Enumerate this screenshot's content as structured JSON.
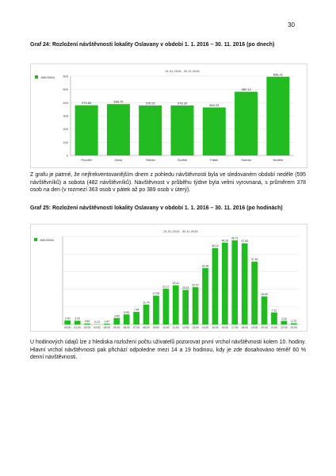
{
  "page": {
    "number": "30"
  },
  "section1": {
    "caption": "Graf 24: Rozložení návštěvnosti lokality Oslavany v období 1. 1. 2016 – 30. 11. 2016 (po dnech)",
    "paragraph": "Z grafu je patrné, že nejfrekventovanějším dnem z pohledu návštěvnosti byla ve sledovaném období neděle (595 návštěvníků) a sobota (482 návštěvníků). Návštěvnost v průběhu týdne byla velmi vyrovnaná, s průměrem 378 osob na den (v rozmezí 363 osob v pátek až po 389 osob v úterý)."
  },
  "section2": {
    "caption": "Graf 25: Rozložení návštěvnosti lokality Oslavany v období 1. 1. 2016 – 30. 11. 2016 (po hodinách)",
    "paragraph": "U hodinových údajů lze z hlediska rozložení počtu uživatelů pozorovat první vrchol návštěvnosti kolem 10. hodiny. Hlavní vrchol návštěvnosti pak přichází odpoledne mezi 14 a 19 hodinou, kdy je zde dosahováno téměř 60 % denní návštěvnosti."
  },
  "chart_data": [
    {
      "type": "bar",
      "subtitle": "01.01.2016 - 30.11.2016",
      "series": [
        {
          "name": "JMK00004",
          "color": "#22bb22",
          "values": [
            379.84,
            388.75,
            378.51,
            378.26,
            363.23,
            482.14,
            595.41
          ],
          "value_labels": [
            "379.84",
            "388.75",
            "378.51",
            "378.26",
            "363.23",
            "482.14",
            "595.41"
          ]
        }
      ],
      "categories": [
        "Pondělí",
        "Úterý",
        "Středa",
        "Čtvrtek",
        "Pátek",
        "Sobota",
        "Neděle"
      ],
      "y_ticks": [
        "0",
        "100",
        "200",
        "300",
        "400",
        "500",
        "600"
      ],
      "ylim": [
        0,
        600
      ],
      "grid": true,
      "legend": "top-left"
    },
    {
      "type": "bar",
      "subtitle": "01.01.2016 - 30.11.2016",
      "series": [
        {
          "name": "JMK00004",
          "color": "#22bb22",
          "values": [
            2.4,
            2.23,
            0.6,
            0.13,
            0.47,
            3.83,
            5.95,
            7.44,
            11.74,
            17.05,
            21.17,
            23.11,
            20.43,
            22.07,
            33.28,
            45.14,
            48.33,
            49.71,
            47.93,
            37.16,
            16.6,
            7.12,
            2.15,
            0.72
          ],
          "value_labels": [
            "2.40",
            "2.23",
            "0.60",
            "0.13",
            "0.47",
            "3.83",
            "5.95",
            "7.44",
            "11.74",
            "17.05",
            "21.17",
            "23.11",
            "20.43",
            "22.07",
            "33.28",
            "45.14",
            "48.33",
            "49.71",
            "47.93",
            "37.16",
            "16.60",
            "7.12",
            "2.15",
            "0.72"
          ]
        }
      ],
      "categories": [
        "00:00",
        "01:00",
        "02:00",
        "03:00",
        "04:00",
        "05:00",
        "06:00",
        "07:00",
        "08:00",
        "09:00",
        "10:00",
        "11:00",
        "12:00",
        "13:00",
        "14:00",
        "15:00",
        "16:00",
        "17:00",
        "18:00",
        "19:00",
        "20:00",
        "21:00",
        "22:00",
        "23:00"
      ],
      "y_ticks": [],
      "ylim": [
        0,
        52
      ],
      "grid": true,
      "legend": "top-left"
    }
  ]
}
